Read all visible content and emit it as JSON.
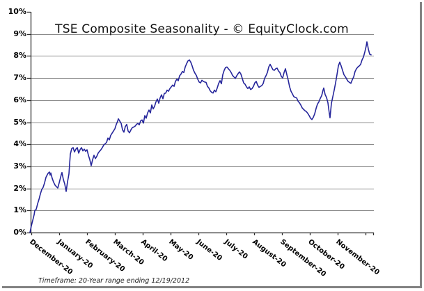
{
  "page": {
    "background": "#ffffff"
  },
  "chart_data": {
    "type": "line",
    "title": "TSE Composite Seasonality - © EquityClock.com",
    "footnote": "Timeframe: 20-Year range ending 12/19/2012",
    "legend": "none",
    "grid": "horizontal",
    "line_color": "#26269b",
    "grid_color": "#8a8a8a",
    "axis_color": "#2e2e2e",
    "categories": [
      "December-20",
      "January-20",
      "February-20",
      "March-20",
      "April-20",
      "May-20",
      "June-20",
      "July-20",
      "August-20",
      "September-20",
      "October-20",
      "November-20"
    ],
    "y_axis": {
      "unit": "%",
      "min": 0,
      "max": 10,
      "tick_labels": [
        "0%",
        "1%",
        "2%",
        "3%",
        "4%",
        "5%",
        "6%",
        "7%",
        "8%",
        "9%",
        "10%"
      ]
    },
    "x_axis": {
      "months": 12,
      "label_rotation_deg": 38
    },
    "series": [
      {
        "name": "TSE Composite Seasonality",
        "points": [
          [
            -0.05,
            0.0
          ],
          [
            0,
            0.3
          ],
          [
            0.05,
            0.55
          ],
          [
            0.1,
            0.8
          ],
          [
            0.125,
            1.0
          ],
          [
            0.175,
            1.05
          ],
          [
            0.225,
            1.3
          ],
          [
            0.275,
            1.5
          ],
          [
            0.325,
            1.75
          ],
          [
            0.375,
            1.95
          ],
          [
            0.425,
            2.05
          ],
          [
            0.475,
            2.25
          ],
          [
            0.525,
            2.5
          ],
          [
            0.575,
            2.62
          ],
          [
            0.6,
            2.68
          ],
          [
            0.65,
            2.74
          ],
          [
            0.675,
            2.6
          ],
          [
            0.7,
            2.7
          ],
          [
            0.75,
            2.45
          ],
          [
            0.8,
            2.28
          ],
          [
            0.85,
            2.15
          ],
          [
            0.9,
            2.08
          ],
          [
            0.95,
            2.02
          ],
          [
            1.0,
            2.25
          ],
          [
            1.05,
            2.5
          ],
          [
            1.075,
            2.62
          ],
          [
            1.1,
            2.72
          ],
          [
            1.15,
            2.4
          ],
          [
            1.2,
            2.2
          ],
          [
            1.25,
            1.86
          ],
          [
            1.3,
            2.3
          ],
          [
            1.35,
            2.65
          ],
          [
            1.375,
            3.1
          ],
          [
            1.4,
            3.55
          ],
          [
            1.45,
            3.8
          ],
          [
            1.5,
            3.85
          ],
          [
            1.55,
            3.65
          ],
          [
            1.6,
            3.78
          ],
          [
            1.65,
            3.85
          ],
          [
            1.7,
            3.6
          ],
          [
            1.75,
            3.75
          ],
          [
            1.8,
            3.85
          ],
          [
            1.85,
            3.7
          ],
          [
            1.9,
            3.78
          ],
          [
            1.95,
            3.68
          ],
          [
            2.0,
            3.75
          ],
          [
            2.05,
            3.5
          ],
          [
            2.1,
            3.3
          ],
          [
            2.15,
            3.03
          ],
          [
            2.2,
            3.3
          ],
          [
            2.25,
            3.5
          ],
          [
            2.3,
            3.35
          ],
          [
            2.35,
            3.45
          ],
          [
            2.4,
            3.6
          ],
          [
            2.45,
            3.68
          ],
          [
            2.5,
            3.75
          ],
          [
            2.55,
            3.85
          ],
          [
            2.6,
            3.97
          ],
          [
            2.65,
            4.02
          ],
          [
            2.7,
            4.08
          ],
          [
            2.75,
            4.28
          ],
          [
            2.8,
            4.2
          ],
          [
            2.85,
            4.4
          ],
          [
            2.9,
            4.5
          ],
          [
            2.95,
            4.6
          ],
          [
            3.0,
            4.7
          ],
          [
            3.05,
            4.9
          ],
          [
            3.1,
            5.05
          ],
          [
            3.125,
            5.15
          ],
          [
            3.175,
            5.05
          ],
          [
            3.225,
            4.95
          ],
          [
            3.275,
            4.65
          ],
          [
            3.325,
            4.55
          ],
          [
            3.375,
            4.8
          ],
          [
            3.425,
            4.9
          ],
          [
            3.475,
            4.6
          ],
          [
            3.525,
            4.52
          ],
          [
            3.575,
            4.65
          ],
          [
            3.625,
            4.75
          ],
          [
            3.675,
            4.78
          ],
          [
            3.725,
            4.82
          ],
          [
            3.775,
            4.9
          ],
          [
            3.825,
            4.95
          ],
          [
            3.875,
            4.88
          ],
          [
            3.925,
            5.06
          ],
          [
            3.975,
            5.1
          ],
          [
            4.025,
            4.96
          ],
          [
            4.075,
            5.3
          ],
          [
            4.125,
            5.18
          ],
          [
            4.175,
            5.42
          ],
          [
            4.225,
            5.55
          ],
          [
            4.275,
            5.42
          ],
          [
            4.325,
            5.78
          ],
          [
            4.375,
            5.6
          ],
          [
            4.425,
            5.72
          ],
          [
            4.475,
            5.92
          ],
          [
            4.525,
            6.05
          ],
          [
            4.575,
            5.86
          ],
          [
            4.625,
            6.1
          ],
          [
            4.675,
            6.24
          ],
          [
            4.725,
            6.06
          ],
          [
            4.775,
            6.3
          ],
          [
            4.825,
            6.32
          ],
          [
            4.875,
            6.45
          ],
          [
            4.925,
            6.4
          ],
          [
            4.975,
            6.52
          ],
          [
            5.025,
            6.6
          ],
          [
            5.075,
            6.68
          ],
          [
            5.125,
            6.62
          ],
          [
            5.175,
            6.85
          ],
          [
            5.225,
            6.95
          ],
          [
            5.275,
            6.88
          ],
          [
            5.325,
            7.1
          ],
          [
            5.375,
            7.18
          ],
          [
            5.425,
            7.3
          ],
          [
            5.475,
            7.25
          ],
          [
            5.525,
            7.5
          ],
          [
            5.575,
            7.65
          ],
          [
            5.625,
            7.78
          ],
          [
            5.675,
            7.82
          ],
          [
            5.725,
            7.72
          ],
          [
            5.775,
            7.55
          ],
          [
            5.825,
            7.35
          ],
          [
            5.875,
            7.22
          ],
          [
            5.925,
            7.12
          ],
          [
            5.975,
            6.95
          ],
          [
            6.025,
            6.82
          ],
          [
            6.075,
            6.78
          ],
          [
            6.125,
            6.9
          ],
          [
            6.175,
            6.85
          ],
          [
            6.225,
            6.82
          ],
          [
            6.275,
            6.8
          ],
          [
            6.325,
            6.62
          ],
          [
            6.375,
            6.55
          ],
          [
            6.425,
            6.42
          ],
          [
            6.475,
            6.35
          ],
          [
            6.525,
            6.32
          ],
          [
            6.575,
            6.45
          ],
          [
            6.625,
            6.38
          ],
          [
            6.675,
            6.55
          ],
          [
            6.725,
            6.75
          ],
          [
            6.775,
            6.88
          ],
          [
            6.825,
            6.74
          ],
          [
            6.875,
            7.15
          ],
          [
            6.925,
            7.35
          ],
          [
            6.975,
            7.48
          ],
          [
            7.025,
            7.5
          ],
          [
            7.075,
            7.42
          ],
          [
            7.125,
            7.35
          ],
          [
            7.175,
            7.25
          ],
          [
            7.225,
            7.12
          ],
          [
            7.275,
            7.05
          ],
          [
            7.325,
            6.98
          ],
          [
            7.375,
            7.1
          ],
          [
            7.425,
            7.2
          ],
          [
            7.475,
            7.28
          ],
          [
            7.525,
            7.18
          ],
          [
            7.575,
            6.98
          ],
          [
            7.625,
            6.78
          ],
          [
            7.675,
            6.72
          ],
          [
            7.725,
            6.6
          ],
          [
            7.775,
            6.52
          ],
          [
            7.825,
            6.6
          ],
          [
            7.875,
            6.48
          ],
          [
            7.925,
            6.52
          ],
          [
            7.975,
            6.62
          ],
          [
            8.025,
            6.78
          ],
          [
            8.075,
            6.85
          ],
          [
            8.125,
            6.68
          ],
          [
            8.175,
            6.58
          ],
          [
            8.225,
            6.62
          ],
          [
            8.275,
            6.66
          ],
          [
            8.325,
            6.75
          ],
          [
            8.375,
            6.98
          ],
          [
            8.425,
            7.1
          ],
          [
            8.475,
            7.25
          ],
          [
            8.525,
            7.5
          ],
          [
            8.575,
            7.62
          ],
          [
            8.625,
            7.5
          ],
          [
            8.675,
            7.38
          ],
          [
            8.725,
            7.35
          ],
          [
            8.775,
            7.42
          ],
          [
            8.825,
            7.45
          ],
          [
            8.875,
            7.32
          ],
          [
            8.925,
            7.25
          ],
          [
            8.975,
            7.08
          ],
          [
            9.025,
            7.0
          ],
          [
            9.075,
            7.25
          ],
          [
            9.125,
            7.42
          ],
          [
            9.175,
            7.15
          ],
          [
            9.225,
            6.9
          ],
          [
            9.275,
            6.6
          ],
          [
            9.325,
            6.4
          ],
          [
            9.375,
            6.28
          ],
          [
            9.425,
            6.16
          ],
          [
            9.475,
            6.12
          ],
          [
            9.525,
            6.1
          ],
          [
            9.575,
            5.96
          ],
          [
            9.625,
            5.88
          ],
          [
            9.675,
            5.78
          ],
          [
            9.725,
            5.65
          ],
          [
            9.775,
            5.58
          ],
          [
            9.825,
            5.52
          ],
          [
            9.875,
            5.48
          ],
          [
            9.925,
            5.4
          ],
          [
            9.975,
            5.3
          ],
          [
            10.025,
            5.18
          ],
          [
            10.075,
            5.12
          ],
          [
            10.125,
            5.22
          ],
          [
            10.175,
            5.38
          ],
          [
            10.225,
            5.62
          ],
          [
            10.275,
            5.82
          ],
          [
            10.325,
            5.92
          ],
          [
            10.375,
            6.08
          ],
          [
            10.425,
            6.2
          ],
          [
            10.475,
            6.45
          ],
          [
            10.5,
            6.55
          ],
          [
            10.55,
            6.25
          ],
          [
            10.6,
            6.12
          ],
          [
            10.65,
            5.88
          ],
          [
            10.7,
            5.4
          ],
          [
            10.725,
            5.2
          ],
          [
            10.775,
            5.85
          ],
          [
            10.825,
            6.15
          ],
          [
            10.875,
            6.45
          ],
          [
            10.925,
            6.78
          ],
          [
            10.975,
            7.15
          ],
          [
            11.025,
            7.55
          ],
          [
            11.075,
            7.72
          ],
          [
            11.125,
            7.55
          ],
          [
            11.175,
            7.35
          ],
          [
            11.225,
            7.15
          ],
          [
            11.275,
            7.06
          ],
          [
            11.325,
            6.95
          ],
          [
            11.375,
            6.85
          ],
          [
            11.425,
            6.8
          ],
          [
            11.475,
            6.76
          ],
          [
            11.525,
            6.92
          ],
          [
            11.575,
            7.05
          ],
          [
            11.625,
            7.3
          ],
          [
            11.675,
            7.42
          ],
          [
            11.725,
            7.5
          ],
          [
            11.775,
            7.55
          ],
          [
            11.825,
            7.62
          ],
          [
            11.875,
            7.82
          ],
          [
            11.925,
            7.95
          ],
          [
            11.975,
            8.18
          ],
          [
            12.025,
            8.45
          ],
          [
            12.05,
            8.64
          ],
          [
            12.075,
            8.5
          ],
          [
            12.1,
            8.32
          ],
          [
            12.15,
            8.08
          ],
          [
            12.2,
            8.05
          ]
        ]
      }
    ]
  }
}
